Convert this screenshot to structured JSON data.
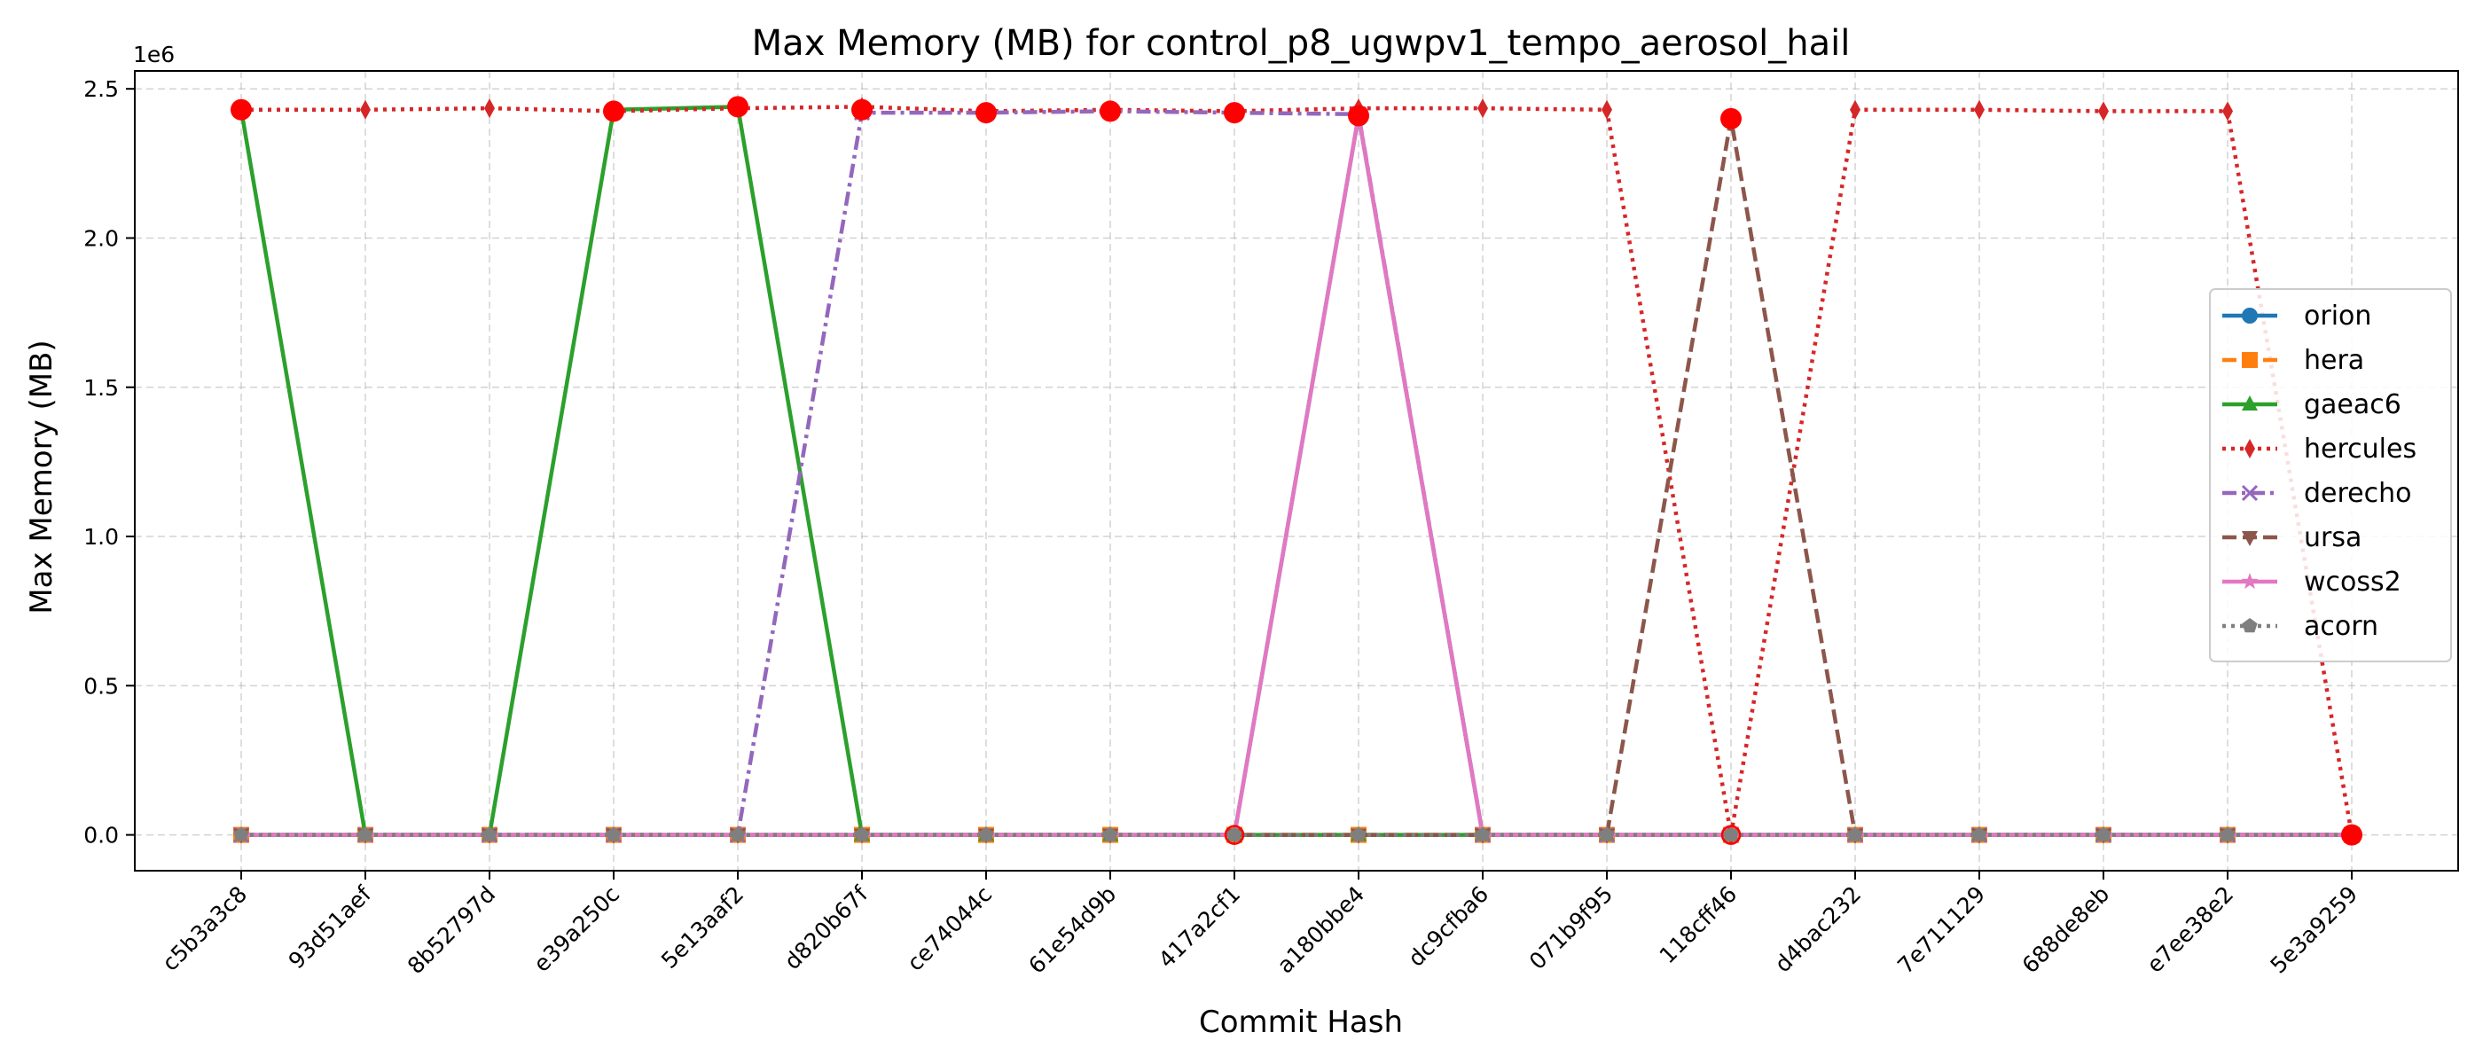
{
  "chart_data": {
    "type": "line",
    "title": "Max Memory (MB) for control_p8_ugwpv1_tempo_aerosol_hail",
    "xlabel": "Commit Hash",
    "ylabel": "Max Memory (MB)",
    "y_offset_label": "1e6",
    "ylim": [
      -0.12,
      2.56
    ],
    "y_ticks": [
      0.0,
      0.5,
      1.0,
      1.5,
      2.0,
      2.5
    ],
    "y_tick_labels": [
      "0.0",
      "0.5",
      "1.0",
      "1.5",
      "2.0",
      "2.5"
    ],
    "grid": true,
    "legend_position": "center-right",
    "categories": [
      "c5b3a3c8",
      "93d51aef",
      "8b52797d",
      "e39a250c",
      "5e13aaf2",
      "d820b67f",
      "ce74044c",
      "61e54d9b",
      "417a2cf1",
      "a180bbe4",
      "dc9cfba6",
      "071b9f95",
      "118cff46",
      "d4bac232",
      "7e711129",
      "688de8eb",
      "e7ee38e2",
      "5e3a9259"
    ],
    "series": [
      {
        "name": "orion",
        "color": "#1f77b4",
        "marker": "circle",
        "dash": "solid",
        "values": [
          0,
          0,
          0,
          0,
          0,
          0,
          0,
          0,
          0,
          2.41,
          0,
          0,
          0,
          0,
          0,
          0,
          0,
          0
        ]
      },
      {
        "name": "hera",
        "color": "#ff7f0e",
        "marker": "square",
        "dash": "dashed",
        "values": [
          0,
          0,
          0,
          0,
          0,
          0,
          0,
          0,
          0,
          0,
          0,
          0,
          0,
          0,
          0,
          0,
          0,
          0
        ]
      },
      {
        "name": "gaeac6",
        "color": "#2ca02c",
        "marker": "triangle-up",
        "dash": "solid",
        "values": [
          2.43,
          0,
          0,
          2.43,
          2.44,
          0,
          0,
          0,
          0,
          0,
          0,
          0,
          0,
          0,
          0,
          0,
          0,
          0
        ]
      },
      {
        "name": "hercules",
        "color": "#d62728",
        "marker": "diamond",
        "dash": "dotted",
        "values": [
          2.43,
          2.43,
          2.435,
          2.425,
          2.435,
          2.44,
          2.425,
          2.43,
          2.425,
          2.435,
          2.435,
          2.43,
          0,
          2.43,
          2.43,
          2.425,
          2.425,
          0
        ]
      },
      {
        "name": "derecho",
        "color": "#9467bd",
        "marker": "x",
        "dash": "dashdot",
        "values": [
          0,
          0,
          0,
          0,
          0,
          2.42,
          2.42,
          2.425,
          2.42,
          2.415,
          0,
          0,
          0,
          0,
          0,
          0,
          0,
          0
        ]
      },
      {
        "name": "ursa",
        "color": "#8c564b",
        "marker": "triangle-down",
        "dash": "dashed",
        "values": [
          0,
          0,
          0,
          0,
          0,
          0,
          0,
          0,
          0,
          0,
          0,
          0,
          2.4,
          0,
          0,
          0,
          0,
          0
        ]
      },
      {
        "name": "wcoss2",
        "color": "#e377c2",
        "marker": "star",
        "dash": "solid",
        "values": [
          0,
          0,
          0,
          0,
          0,
          0,
          0,
          0,
          0,
          2.41,
          0,
          0,
          0,
          0,
          0,
          0,
          0,
          0
        ]
      },
      {
        "name": "acorn",
        "color": "#7f7f7f",
        "marker": "pentagon",
        "dash": "dotted",
        "values": [
          0,
          0,
          0,
          0,
          0,
          0,
          0,
          0,
          0,
          0,
          0,
          0,
          0,
          0,
          0,
          0,
          0,
          0
        ]
      }
    ],
    "highlight_points": {
      "color": "#ff0000",
      "indices": [
        0,
        3,
        4,
        5,
        6,
        7,
        8,
        9,
        12,
        17
      ],
      "values": [
        2.43,
        2.425,
        2.44,
        2.43,
        2.42,
        2.425,
        2.42,
        2.41,
        2.4,
        0
      ],
      "low_markers": [
        {
          "index": 8,
          "value": 0
        },
        {
          "index": 12,
          "value": 0
        }
      ]
    }
  }
}
